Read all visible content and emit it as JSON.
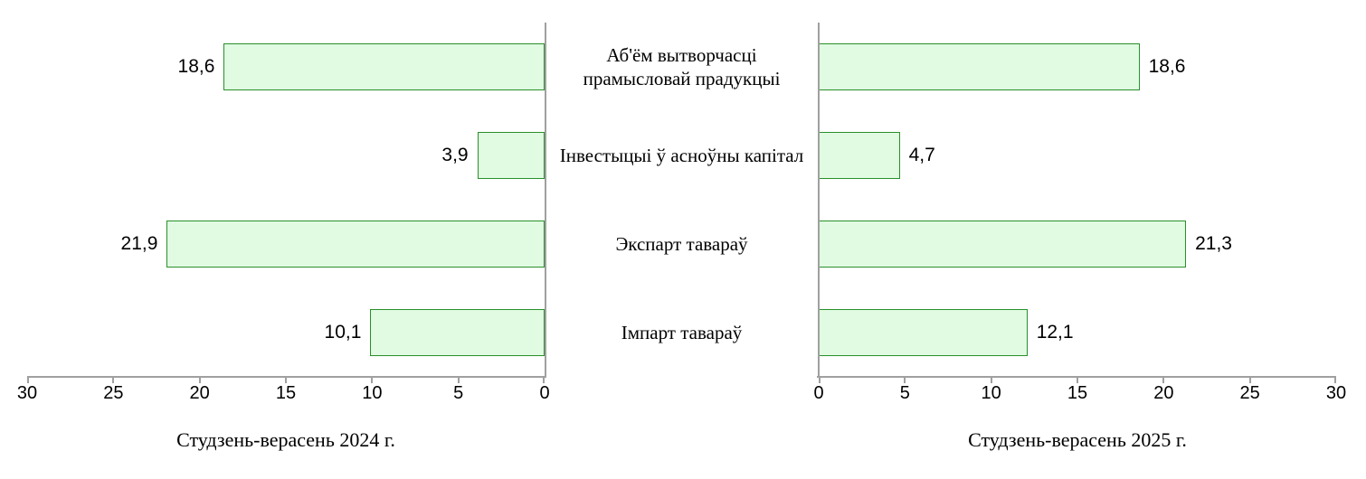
{
  "chart_data": {
    "type": "bar",
    "orientation": "horizontal",
    "layout": "butterfly",
    "title": "",
    "categories": [
      "Аб'ём вытворчасці прамысловай прадукцыі",
      "Інвестыцыі ў асноўны капітал",
      "Экспарт тавараў",
      "Імпарт тавараў"
    ],
    "series": [
      {
        "name": "Студзень-верасень 2024 г.",
        "values": [
          18.6,
          3.9,
          21.9,
          10.1
        ],
        "value_labels": [
          "18,6",
          "3,9",
          "21,9",
          "10,1"
        ],
        "direction": "right-to-left"
      },
      {
        "name": "Студзень-верасень 2025 г.",
        "values": [
          18.6,
          4.7,
          21.3,
          12.1
        ],
        "value_labels": [
          "18,6",
          "4,7",
          "21,3",
          "12,1"
        ],
        "direction": "left-to-right"
      }
    ],
    "xlim": [
      0,
      30
    ],
    "ticks": [
      0,
      5,
      10,
      15,
      20,
      25,
      30
    ],
    "tick_labels_left_chart": [
      "30",
      "25",
      "20",
      "15",
      "10",
      "5",
      "0"
    ],
    "tick_labels_right_chart": [
      "0",
      "5",
      "10",
      "15",
      "20",
      "25",
      "30"
    ],
    "grid": false,
    "legend": false,
    "colors": {
      "bar_fill": "#e0fbe2",
      "bar_border": "#2a8f2a",
      "axis": "#a0a0a0",
      "text": "#000000"
    }
  }
}
